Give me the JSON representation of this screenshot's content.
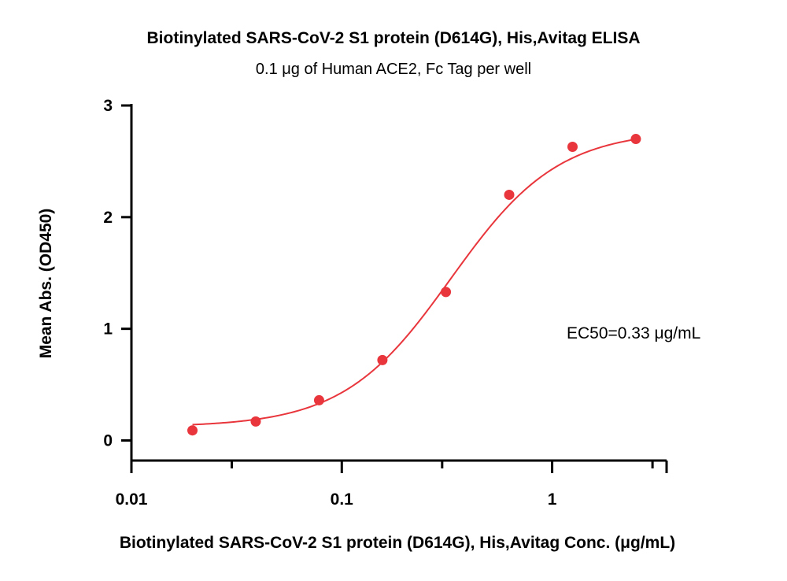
{
  "chart_data": {
    "type": "scatter",
    "title": "Biotinylated SARS-CoV-2 S1 protein (D614G), His,Avitag ELISA",
    "subtitle": "0.1 μg of Human ACE2, Fc Tag per well",
    "xlabel": "Biotinylated SARS-CoV-2 S1 protein (D614G), His,Avitag Conc. (μg/mL)",
    "ylabel": "Mean Abs. (OD450)",
    "x_scale": "log",
    "xlim": [
      0.01,
      3.5
    ],
    "ylim": [
      -0.18,
      3
    ],
    "x_ticks": [
      {
        "value": 0.01,
        "label": "0.01"
      },
      {
        "value": 0.1,
        "label": "0.1"
      },
      {
        "value": 1,
        "label": "1"
      }
    ],
    "y_ticks": [
      {
        "value": 0,
        "label": "0"
      },
      {
        "value": 1,
        "label": "1"
      },
      {
        "value": 2,
        "label": "2"
      },
      {
        "value": 3,
        "label": "3"
      }
    ],
    "series": [
      {
        "points": [
          {
            "x": 0.0195,
            "y": 0.09
          },
          {
            "x": 0.039,
            "y": 0.17
          },
          {
            "x": 0.078,
            "y": 0.36
          },
          {
            "x": 0.156,
            "y": 0.72
          },
          {
            "x": 0.3125,
            "y": 1.33
          },
          {
            "x": 0.625,
            "y": 2.2
          },
          {
            "x": 1.25,
            "y": 2.63
          },
          {
            "x": 2.5,
            "y": 2.7
          }
        ],
        "fit": {
          "model": "4PL",
          "bottom": 0.12,
          "top": 2.78,
          "ec50": 0.33,
          "hill": 1.7
        }
      }
    ],
    "annotations": [
      {
        "text": "EC50=0.33 μg/mL"
      }
    ],
    "colors": {
      "series": "#e8363c",
      "axis": "#000000"
    },
    "grid": false,
    "legend": "none"
  }
}
